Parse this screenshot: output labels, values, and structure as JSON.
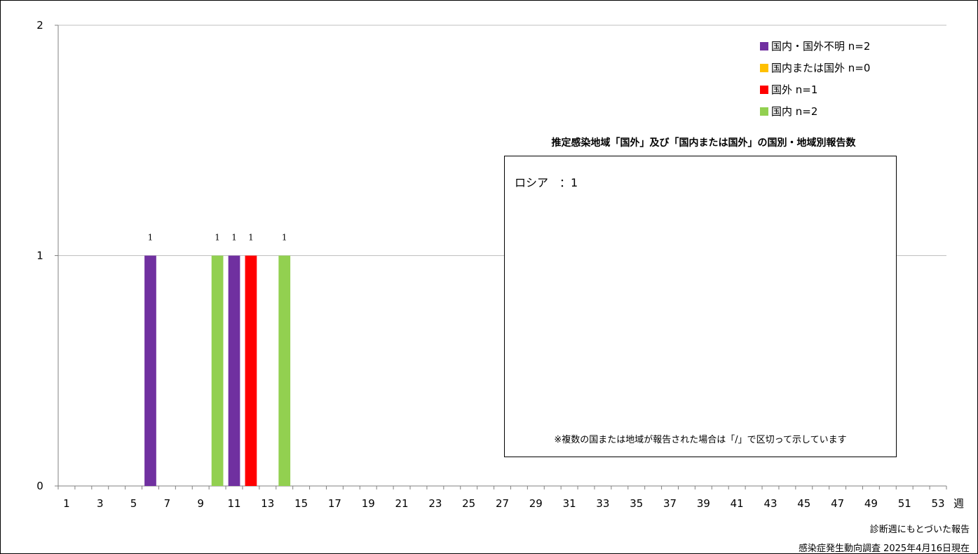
{
  "chart_data": {
    "type": "bar",
    "x": [
      6,
      10,
      11,
      12,
      14
    ],
    "series": [
      {
        "name": "国内・国外不明 n=2",
        "color": "#7030a0",
        "points": [
          {
            "x": 6,
            "y": 1
          },
          {
            "x": 11,
            "y": 1
          }
        ]
      },
      {
        "name": "国内または国外 n=0",
        "color": "#ffc000",
        "points": []
      },
      {
        "name": "国外 n=1",
        "color": "#ff0000",
        "points": [
          {
            "x": 12,
            "y": 1
          }
        ]
      },
      {
        "name": "国内 n=2",
        "color": "#92d050",
        "points": [
          {
            "x": 10,
            "y": 1
          },
          {
            "x": 14,
            "y": 1
          }
        ]
      }
    ],
    "ylim": [
      0,
      2
    ],
    "yticks": [
      "0",
      "1",
      "2"
    ],
    "xticks": [
      "1",
      "3",
      "5",
      "7",
      "9",
      "11",
      "13",
      "15",
      "17",
      "19",
      "21",
      "23",
      "25",
      "27",
      "29",
      "31",
      "33",
      "35",
      "37",
      "39",
      "41",
      "43",
      "45",
      "47",
      "49",
      "51",
      "53"
    ],
    "xlabel": "週",
    "legend_position": "top-right",
    "grid": true
  },
  "panel": {
    "title": "推定感染地域「国外」及び「国内または国外」の国別・地域別報告数",
    "lines": [
      "ロシア　：1"
    ],
    "note": "※複数の国または地域が報告された場合は「/」で区切って示しています"
  },
  "footer": {
    "line1": "診断週にもとづいた報告",
    "line2": "感染症発生動向調査 2025年4月16日現在"
  }
}
